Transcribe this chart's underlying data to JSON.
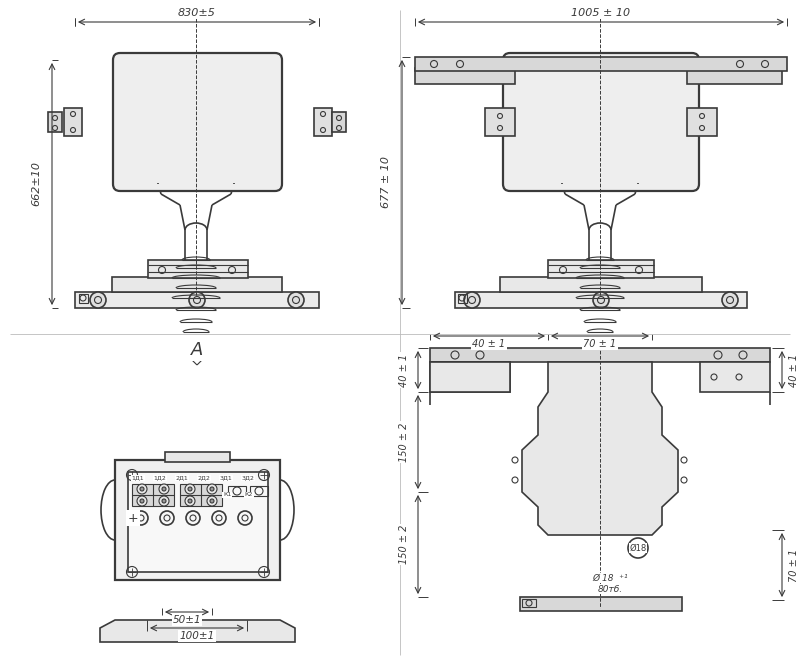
{
  "bg_color": "#ffffff",
  "line_color": "#3a3a3a",
  "dims": {
    "tl_width": "830±5",
    "tl_height": "662±10",
    "tr_width": "1005 ± 10",
    "tr_height": "677 ± 10",
    "bl_dim1": "50±1",
    "bl_dim2": "100±1",
    "br_d_70_1": "70 ± 1",
    "br_d_40_1": "40 ± 1",
    "br_d_150_2a": "150 ± 2",
    "br_d_150_2b": "150 ± 2",
    "br_d_40_r": "40 ± 1",
    "br_d_70_r": "70 ± 1",
    "br_hole": "Ø 18  ⁺¹",
    "br_hole2": "80тб."
  },
  "label_A": "A"
}
